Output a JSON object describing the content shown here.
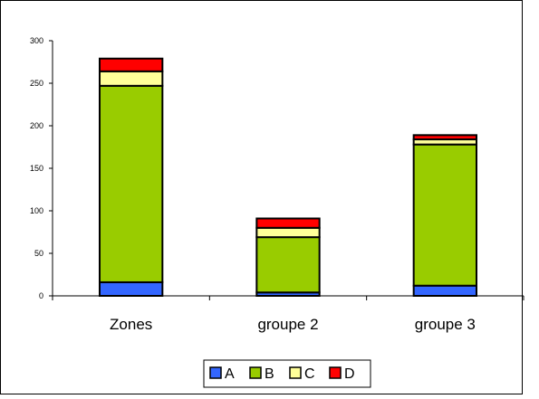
{
  "chart_data": {
    "type": "bar",
    "stacked": true,
    "categories": [
      "Zones",
      "groupe 2",
      "groupe 3"
    ],
    "series": [
      {
        "name": "A",
        "color": "#3366FF",
        "values": [
          16,
          4,
          12
        ]
      },
      {
        "name": "B",
        "color": "#99CC00",
        "values": [
          231,
          65,
          166
        ]
      },
      {
        "name": "C",
        "color": "#FFFF99",
        "values": [
          17,
          11,
          6
        ]
      },
      {
        "name": "D",
        "color": "#FF0000",
        "values": [
          15,
          11,
          5
        ]
      }
    ],
    "y_ticks": [
      "0",
      "50",
      "100",
      "150",
      "200",
      "250",
      "300"
    ],
    "ylim": [
      0,
      300
    ],
    "grid": false,
    "legend_position": "bottom"
  }
}
